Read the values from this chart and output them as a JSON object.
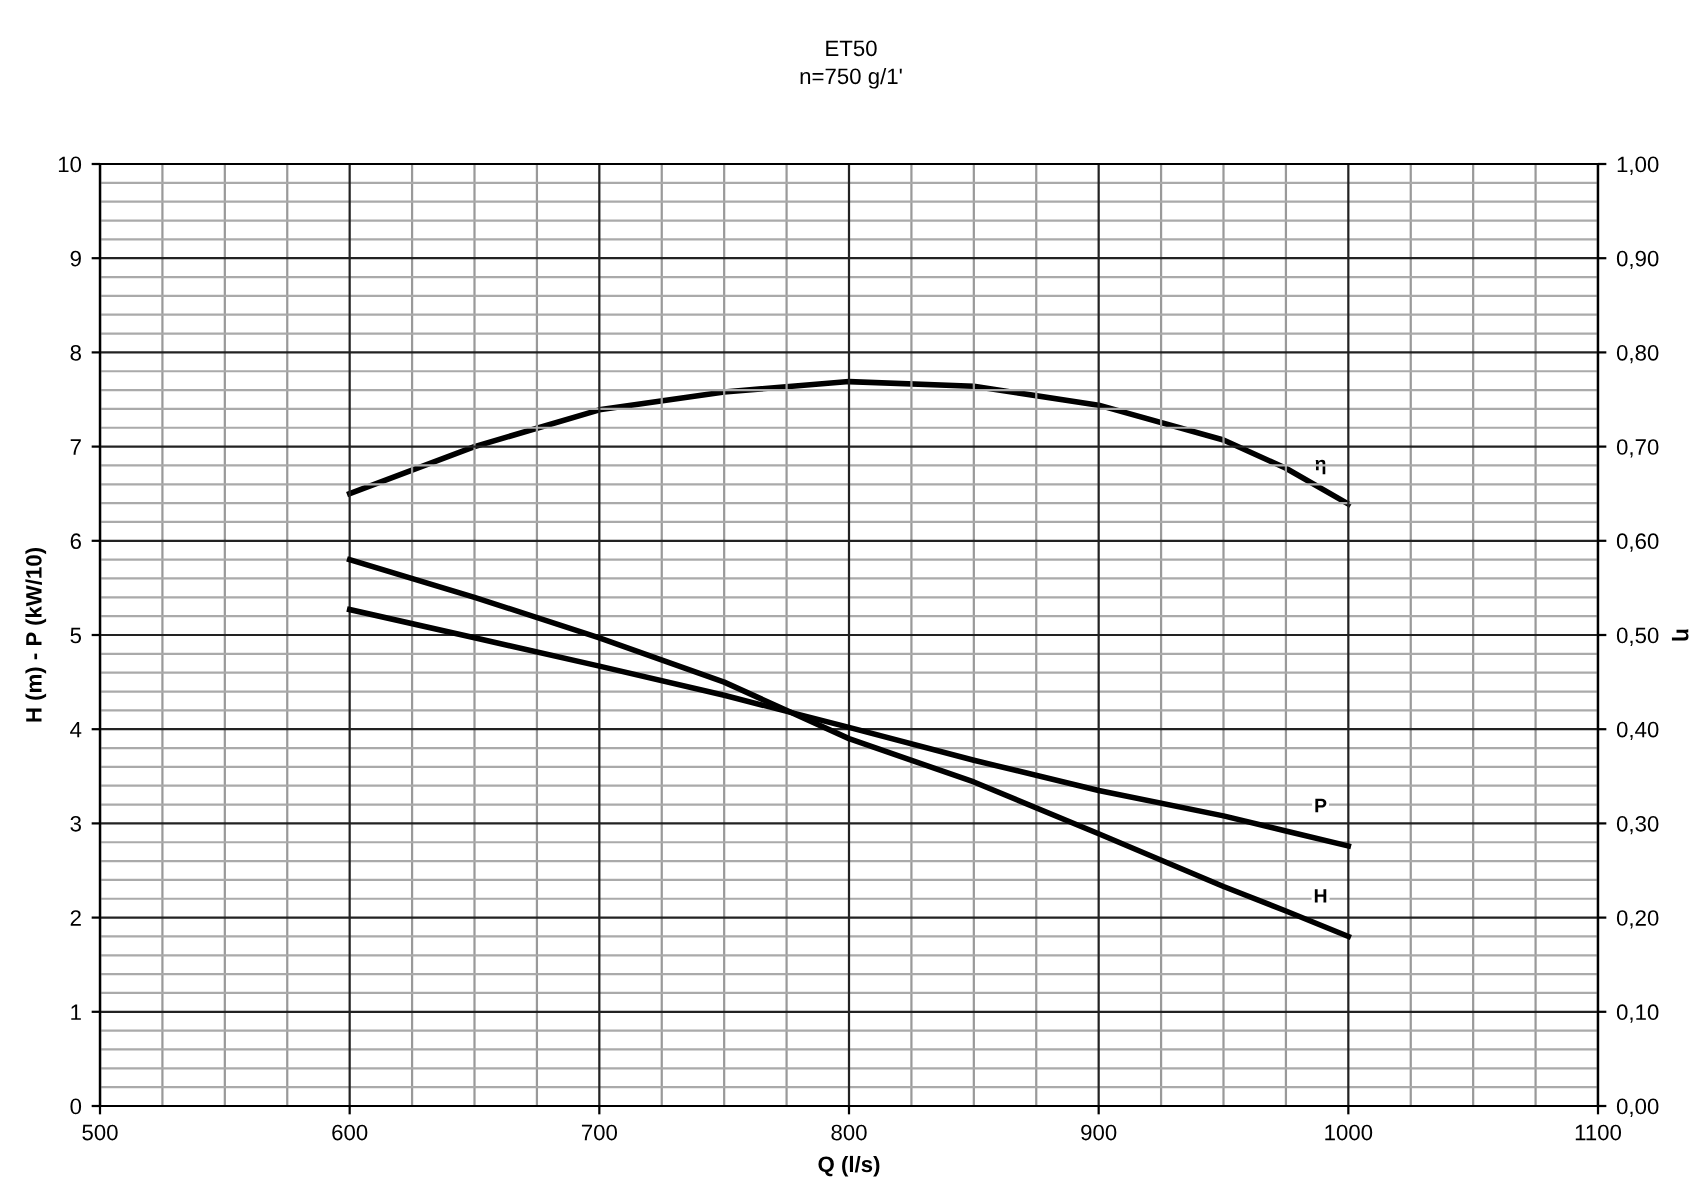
{
  "chart_data": {
    "type": "line",
    "title": "ET50",
    "subtitle": "n=750 g/1'",
    "xlabel": "Q (l/s)",
    "ylabel": "H (m) - P (kW/10)",
    "y2label": "η",
    "x": [
      600,
      650,
      700,
      750,
      800,
      850,
      900,
      950,
      975,
      1000
    ],
    "series": [
      {
        "name": "H",
        "color": "#000000",
        "values": [
          5.8,
          5.4,
          4.97,
          4.5,
          3.9,
          3.44,
          2.89,
          2.33,
          2.07,
          1.8
        ]
      },
      {
        "name": "P",
        "color": "#000000",
        "values": [
          5.27,
          4.97,
          4.67,
          4.36,
          4.02,
          3.67,
          3.35,
          3.08,
          2.92,
          2.76
        ]
      },
      {
        "name": "η",
        "color": "#000000",
        "axis": "y2",
        "values": [
          0.65,
          0.7,
          0.739,
          0.758,
          0.769,
          0.764,
          0.744,
          0.707,
          0.677,
          0.639
        ]
      }
    ],
    "xlim": [
      500,
      1100
    ],
    "xticks": [
      500,
      600,
      700,
      800,
      900,
      1000,
      1100
    ],
    "ylim": [
      0,
      10
    ],
    "yticks": [
      0,
      1,
      2,
      3,
      4,
      5,
      6,
      7,
      8,
      9,
      10
    ],
    "y2lim": [
      0,
      1
    ],
    "y2ticks": [
      {
        "value": 0,
        "label": "0,00"
      },
      {
        "value": 0.1,
        "label": "0,10"
      },
      {
        "value": 0.2,
        "label": "0,20"
      },
      {
        "value": 0.3,
        "label": "0,30"
      },
      {
        "value": 0.4,
        "label": "0,40"
      },
      {
        "value": 0.5,
        "label": "0,50"
      },
      {
        "value": 0.6,
        "label": "0,60"
      },
      {
        "value": 0.7,
        "label": "0,70"
      },
      {
        "value": 0.8,
        "label": "0,80"
      },
      {
        "value": 0.9,
        "label": "0,90"
      },
      {
        "value": 1,
        "label": "1,00"
      }
    ],
    "grid": true,
    "legend": false,
    "marker": "none",
    "line_style": "solid"
  }
}
